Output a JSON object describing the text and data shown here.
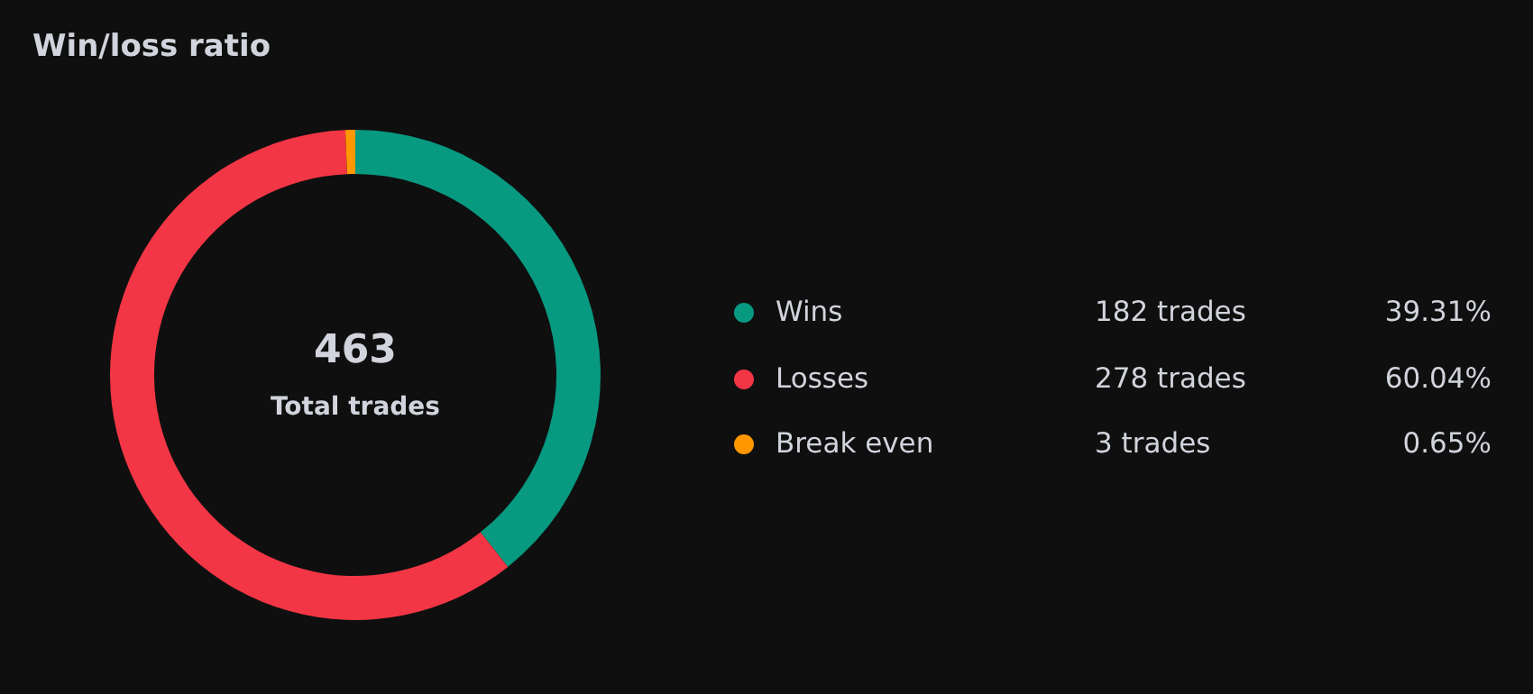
{
  "chart_data": {
    "type": "donut",
    "title": "Win/loss ratio",
    "categories": [
      "Wins",
      "Losses",
      "Break even"
    ],
    "values": [
      182,
      278,
      3
    ],
    "colors": [
      "#089981",
      "#f23645",
      "#ff9800"
    ],
    "value_labels": [
      "182 trades",
      "278 trades",
      "3 trades"
    ],
    "annotations": [
      "463",
      "Total trades",
      "39.31%",
      "60.04%",
      "0.65%"
    ],
    "legend": "right"
  }
}
